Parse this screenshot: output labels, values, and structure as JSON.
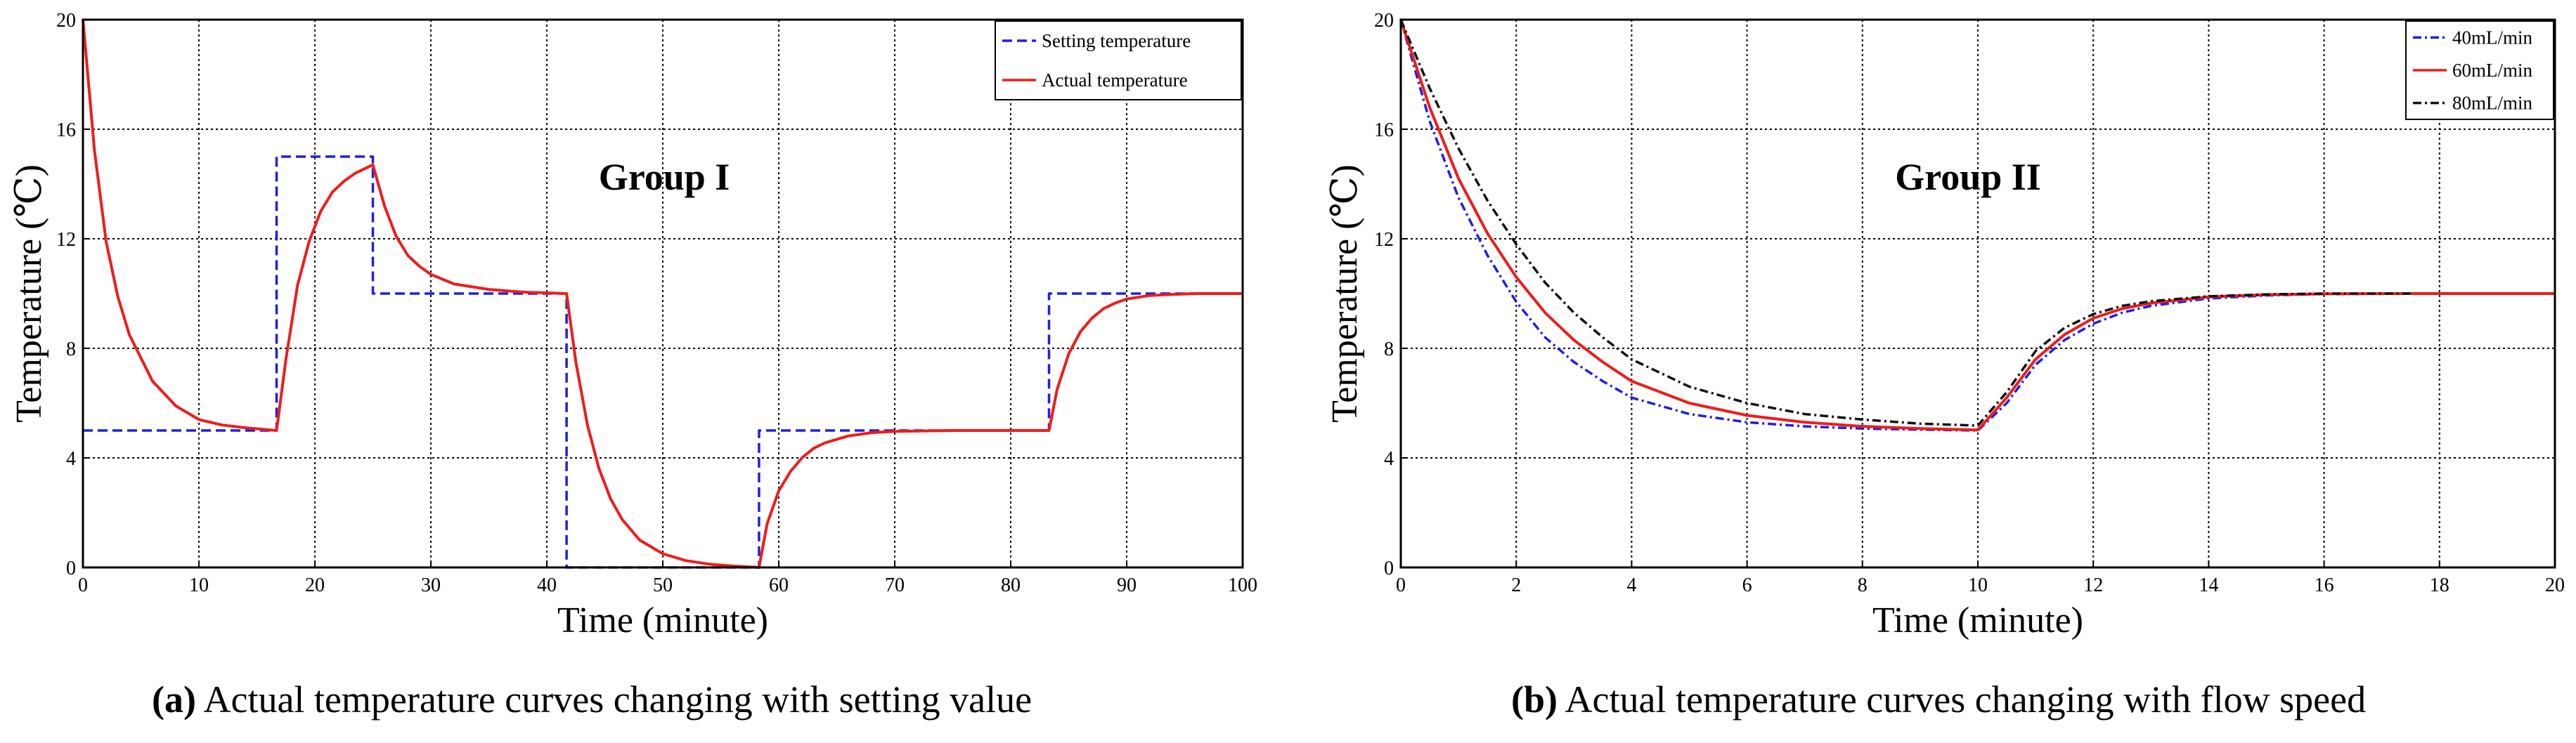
{
  "chart_data": [
    {
      "type": "line",
      "title": "Group I",
      "xlabel": "Time (minute)",
      "ylabel": "Temperature (℃)",
      "xlim": [
        0,
        100
      ],
      "ylim": [
        0,
        20
      ],
      "xticks": [
        "0",
        "10",
        "20",
        "30",
        "40",
        "50",
        "60",
        "70",
        "80",
        "90",
        "100"
      ],
      "yticks": [
        "0",
        "4",
        "8",
        "12",
        "16",
        "20"
      ],
      "grid": true,
      "legend_position": "top-right",
      "series": [
        {
          "name": "Setting temperature",
          "color": "#1f1fe0",
          "dash": "dashed",
          "x": [
            0,
            16.7,
            16.7,
            25,
            25,
            41.7,
            41.7,
            58.3,
            58.3,
            83.3,
            83.3,
            100
          ],
          "y": [
            5,
            5,
            15,
            15,
            10,
            10,
            0,
            0,
            5,
            5,
            10,
            10
          ]
        },
        {
          "name": "Actual temperature",
          "color": "#ee1c1c",
          "dash": "solid",
          "x": [
            0,
            1,
            2,
            3,
            4,
            6,
            8,
            10,
            12,
            14,
            16.7,
            17.5,
            18.5,
            19.5,
            20.5,
            21.5,
            22.5,
            23.5,
            25,
            26,
            27,
            28,
            29,
            30,
            32,
            35,
            38,
            41.7,
            42.5,
            43.5,
            44.5,
            45.5,
            46.5,
            48,
            50,
            52,
            54,
            56,
            58.3,
            59,
            60,
            61,
            62,
            63,
            64,
            66,
            68,
            70,
            75,
            83.3,
            84,
            85,
            86,
            87,
            88,
            89,
            90,
            92,
            94,
            96,
            100
          ],
          "y": [
            20,
            15.2,
            11.9,
            9.9,
            8.5,
            6.8,
            5.9,
            5.4,
            5.2,
            5.1,
            5,
            7.6,
            10.3,
            11.9,
            13,
            13.7,
            14.1,
            14.4,
            14.7,
            13.2,
            12.1,
            11.4,
            11,
            10.7,
            10.35,
            10.15,
            10.05,
            10,
            7.5,
            5.2,
            3.6,
            2.5,
            1.75,
            1,
            0.5,
            0.25,
            0.12,
            0.05,
            0,
            1.6,
            2.8,
            3.5,
            4,
            4.35,
            4.55,
            4.8,
            4.92,
            4.97,
            5,
            5,
            6.5,
            7.8,
            8.6,
            9.1,
            9.45,
            9.65,
            9.8,
            9.93,
            9.97,
            10,
            10
          ]
        }
      ]
    },
    {
      "type": "line",
      "title": "Group II",
      "xlabel": "Time (minute)",
      "ylabel": "Temperature (℃)",
      "xlim": [
        0,
        20
      ],
      "ylim": [
        0,
        20
      ],
      "xticks": [
        "0",
        "2",
        "4",
        "6",
        "8",
        "10",
        "12",
        "14",
        "16",
        "18",
        "20"
      ],
      "yticks": [
        "0",
        "4",
        "8",
        "12",
        "16",
        "20"
      ],
      "grid": true,
      "legend_position": "top-right",
      "series": [
        {
          "name": "40mL/min",
          "color": "#1f1fe0",
          "dash": "dashdot",
          "x": [
            0,
            0.5,
            1,
            1.5,
            2,
            2.5,
            3,
            3.5,
            4,
            5,
            6,
            7,
            8,
            9,
            10,
            10.5,
            11,
            11.5,
            12,
            12.5,
            13,
            14,
            15,
            16,
            17.5
          ],
          "y": [
            20,
            16.3,
            13.5,
            11.4,
            9.7,
            8.4,
            7.5,
            6.8,
            6.2,
            5.6,
            5.3,
            5.15,
            5.07,
            5.03,
            5,
            6,
            7.4,
            8.3,
            8.9,
            9.3,
            9.55,
            9.82,
            9.93,
            9.98,
            10
          ]
        },
        {
          "name": "60mL/min",
          "color": "#ee1c1c",
          "dash": "solid",
          "x": [
            0,
            0.5,
            1,
            1.5,
            2,
            2.5,
            3,
            3.5,
            4,
            5,
            6,
            7,
            8,
            9,
            10,
            10.5,
            11,
            11.5,
            12,
            12.5,
            13,
            14,
            15,
            16,
            17.5,
            20
          ],
          "y": [
            20,
            16.8,
            14.2,
            12.2,
            10.6,
            9.3,
            8.3,
            7.5,
            6.8,
            6,
            5.55,
            5.3,
            5.15,
            5.07,
            5.02,
            6.2,
            7.6,
            8.5,
            9.1,
            9.45,
            9.65,
            9.88,
            9.96,
            9.99,
            10,
            10
          ]
        },
        {
          "name": "80mL/min",
          "color": "#111111",
          "dash": "dashdot",
          "x": [
            0,
            0.5,
            1,
            1.5,
            2,
            2.5,
            3,
            3.5,
            4,
            5,
            6,
            7,
            8,
            9,
            10,
            10.5,
            11,
            11.5,
            12,
            12.5,
            13,
            14,
            15,
            16,
            17.5
          ],
          "y": [
            20,
            17.5,
            15.3,
            13.4,
            11.8,
            10.4,
            9.3,
            8.4,
            7.6,
            6.6,
            6,
            5.6,
            5.4,
            5.25,
            5.18,
            6.4,
            7.9,
            8.75,
            9.25,
            9.55,
            9.72,
            9.9,
            9.97,
            10,
            10
          ]
        }
      ]
    }
  ],
  "captions": [
    {
      "label": "(a)",
      "text": " Actual temperature curves changing with setting value"
    },
    {
      "label": "(b)",
      "text": " Actual temperature curves changing with flow speed"
    }
  ]
}
